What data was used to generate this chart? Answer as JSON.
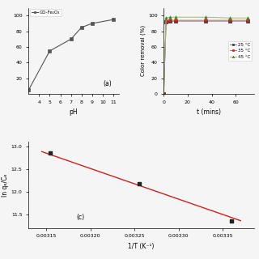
{
  "subplot_a": {
    "x": [
      3,
      5,
      7,
      8,
      9,
      11
    ],
    "y": [
      5,
      55,
      70,
      85,
      90,
      95
    ],
    "color": "#555555",
    "marker": "s",
    "label": "GO-Fe₂O₃",
    "xlabel": "pH",
    "panel_label": "(a)",
    "xlim": [
      3,
      11.5
    ],
    "xticks": [
      4,
      5,
      6,
      7,
      8,
      9,
      10,
      11
    ],
    "ylim": [
      0,
      110
    ],
    "yticks": [
      20,
      40,
      60,
      80,
      100
    ]
  },
  "subplot_b": {
    "series": [
      {
        "label": "25 °C",
        "color": "#777777",
        "marker": "s",
        "markercolor": "#333333",
        "x": [
          0,
          2,
          5,
          10,
          35,
          55,
          70
        ],
        "y": [
          0,
          92,
          93,
          93,
          93,
          93,
          93
        ]
      },
      {
        "label": "35 °C",
        "color": "#bb7777",
        "marker": "o",
        "markercolor": "#cc2222",
        "x": [
          0,
          2,
          5,
          10,
          35,
          55,
          70
        ],
        "y": [
          0,
          93,
          94,
          94,
          94,
          94,
          94
        ]
      },
      {
        "label": "45 °C",
        "color": "#99bb77",
        "marker": "^",
        "markercolor": "#448822",
        "x": [
          0,
          2,
          5,
          10,
          35,
          55,
          70
        ],
        "y": [
          0,
          97,
          98,
          98,
          98,
          97,
          97
        ]
      }
    ],
    "xlabel": "t (mins)",
    "ylabel": "Color removal (%)",
    "xlim": [
      0,
      75
    ],
    "ylim": [
      0,
      110
    ],
    "yticks": [
      0,
      20,
      40,
      60,
      80,
      100
    ]
  },
  "subplot_c": {
    "scatter_x": [
      0.003155,
      0.003255,
      0.00336
    ],
    "scatter_y": [
      12.85,
      12.18,
      11.36
    ],
    "line_x": [
      0.003145,
      0.00337
    ],
    "line_y": [
      12.88,
      11.36
    ],
    "line_color": "#cc2222",
    "marker_color": "#222222",
    "xlabel": "1/T (K⁻¹)",
    "ylabel": "ln qₑ/Cₑ",
    "panel_label": "(c)",
    "xlim": [
      0.00313,
      0.003385
    ],
    "ylim": [
      11.2,
      13.1
    ],
    "yticks": [
      11.5,
      12.0,
      12.5,
      13.0
    ],
    "xticks": [
      0.00315,
      0.0032,
      0.00325,
      0.0033,
      0.00335
    ]
  },
  "bg_color": "#f5f5f5"
}
